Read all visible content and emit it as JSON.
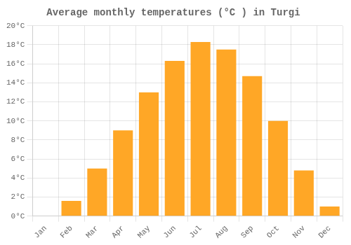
{
  "chart_data": {
    "type": "bar",
    "title": "Average monthly temperatures (°C ) in Turgi",
    "categories": [
      "Jan",
      "Feb",
      "Mar",
      "Apr",
      "May",
      "Jun",
      "Jul",
      "Aug",
      "Sep",
      "Oct",
      "Nov",
      "Dec"
    ],
    "values": [
      0.0,
      1.6,
      5.0,
      9.0,
      13.0,
      16.3,
      18.3,
      17.5,
      14.7,
      10.0,
      4.8,
      1.0
    ],
    "color": "#FFA726",
    "ylim": [
      0,
      20
    ],
    "yticks": [
      {
        "value": 0,
        "label": "0°C"
      },
      {
        "value": 2,
        "label": "2°C"
      },
      {
        "value": 4,
        "label": "4°C"
      },
      {
        "value": 6,
        "label": "6°C"
      },
      {
        "value": 8,
        "label": "8°C"
      },
      {
        "value": 10,
        "label": "10°C"
      },
      {
        "value": 12,
        "label": "12°C"
      },
      {
        "value": 14,
        "label": "14°C"
      },
      {
        "value": 16,
        "label": "16°C"
      },
      {
        "value": 18,
        "label": "18°C"
      },
      {
        "value": 20,
        "label": "20°C"
      }
    ],
    "grid": true
  }
}
